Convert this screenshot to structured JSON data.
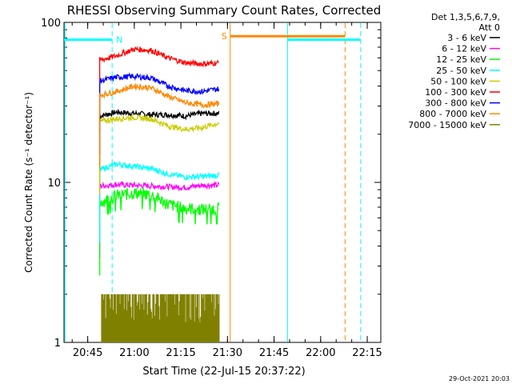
{
  "chart_data": {
    "type": "line",
    "title": "RHESSI Observing Summary Count Rates, Corrected",
    "xlabel": "Start Time (22-Jul-15 20:37:22)",
    "ylabel": "Corrected Count Rate (s⁻¹ detector⁻¹)",
    "yscale": "log",
    "ylim": [
      1,
      100
    ],
    "xlim_minutes_since_start": [
      0,
      102
    ],
    "x_ticks": [
      "20:45",
      "21:00",
      "21:15",
      "21:30",
      "21:45",
      "22:00",
      "22:15"
    ],
    "y_ticks": [
      "1",
      "10",
      "100"
    ],
    "legend_header": [
      "Det 1,3,5,6,7,9,",
      "Att 0"
    ],
    "legend_position": "right",
    "series": [
      {
        "name": "3 - 6 keV",
        "color": "#000000",
        "level": [
          26.0,
          27.5,
          27.0,
          26.5,
          26.5,
          26.0,
          27.0,
          27.0
        ]
      },
      {
        "name": "6 - 12 keV",
        "color": "#ff00ff",
        "level": [
          9.5,
          9.7,
          9.6,
          9.5,
          9.4,
          9.3,
          9.6,
          9.6
        ]
      },
      {
        "name": "12 - 25 keV",
        "color": "#00ff00",
        "level": [
          7.5,
          8.3,
          8.6,
          8.4,
          7.3,
          6.9,
          6.8,
          6.9
        ]
      },
      {
        "name": "25 - 50 keV",
        "color": "#00ffff",
        "level": [
          12.0,
          13.0,
          12.6,
          12.2,
          11.3,
          10.8,
          10.9,
          11.1
        ]
      },
      {
        "name": "50 - 100 keV",
        "color": "#cccc00",
        "level": [
          24.0,
          25.0,
          25.5,
          25.0,
          22.5,
          21.5,
          22.0,
          23.5
        ]
      },
      {
        "name": "100 - 300 keV",
        "color": "#ff0000",
        "level": [
          58.0,
          62.0,
          68.0,
          67.0,
          60.0,
          56.0,
          55.0,
          56.0
        ]
      },
      {
        "name": "300 - 800 keV",
        "color": "#0000ff",
        "level": [
          43.0,
          45.5,
          46.0,
          45.0,
          40.0,
          37.5,
          37.0,
          38.5
        ]
      },
      {
        "name": "800 - 7000 keV",
        "color": "#ff8800",
        "level": [
          35.0,
          37.0,
          40.0,
          39.0,
          34.5,
          31.5,
          30.5,
          31.0
        ]
      },
      {
        "name": "7000 - 15000 keV",
        "color": "#808000",
        "level": [
          1.4,
          1.5,
          1.4,
          1.5,
          1.3,
          1.4,
          1.5,
          1.4
        ]
      }
    ],
    "series_x_minutes": [
      11.5,
      17.0,
      22.5,
      28.0,
      33.5,
      39.0,
      44.5,
      50.0
    ],
    "flag_bars": [
      {
        "label": "N",
        "color": "#00ffff",
        "x_start": 0,
        "x_end": 15.5,
        "y": 78
      },
      {
        "label": "S",
        "color": "#ff8800",
        "x_start": 53.5,
        "x_end": 90.5,
        "y": 82
      },
      {
        "label": "",
        "color": "#00ffff",
        "x_start": 72,
        "x_end": 95.5,
        "y": 78
      }
    ],
    "vlines": [
      {
        "x": 0.3,
        "color": "#00ffff",
        "style": "solid"
      },
      {
        "x": 15.5,
        "color": "#00ffff",
        "style": "dashed"
      },
      {
        "x": 53.5,
        "color": "#ff8800",
        "style": "solid"
      },
      {
        "x": 72.0,
        "color": "#00ffff",
        "style": "solid"
      },
      {
        "x": 90.5,
        "color": "#ff8800",
        "style": "dashed"
      },
      {
        "x": 95.5,
        "color": "#00ffff",
        "style": "dashed"
      }
    ],
    "footer": "29-Oct-2021 20:03"
  }
}
